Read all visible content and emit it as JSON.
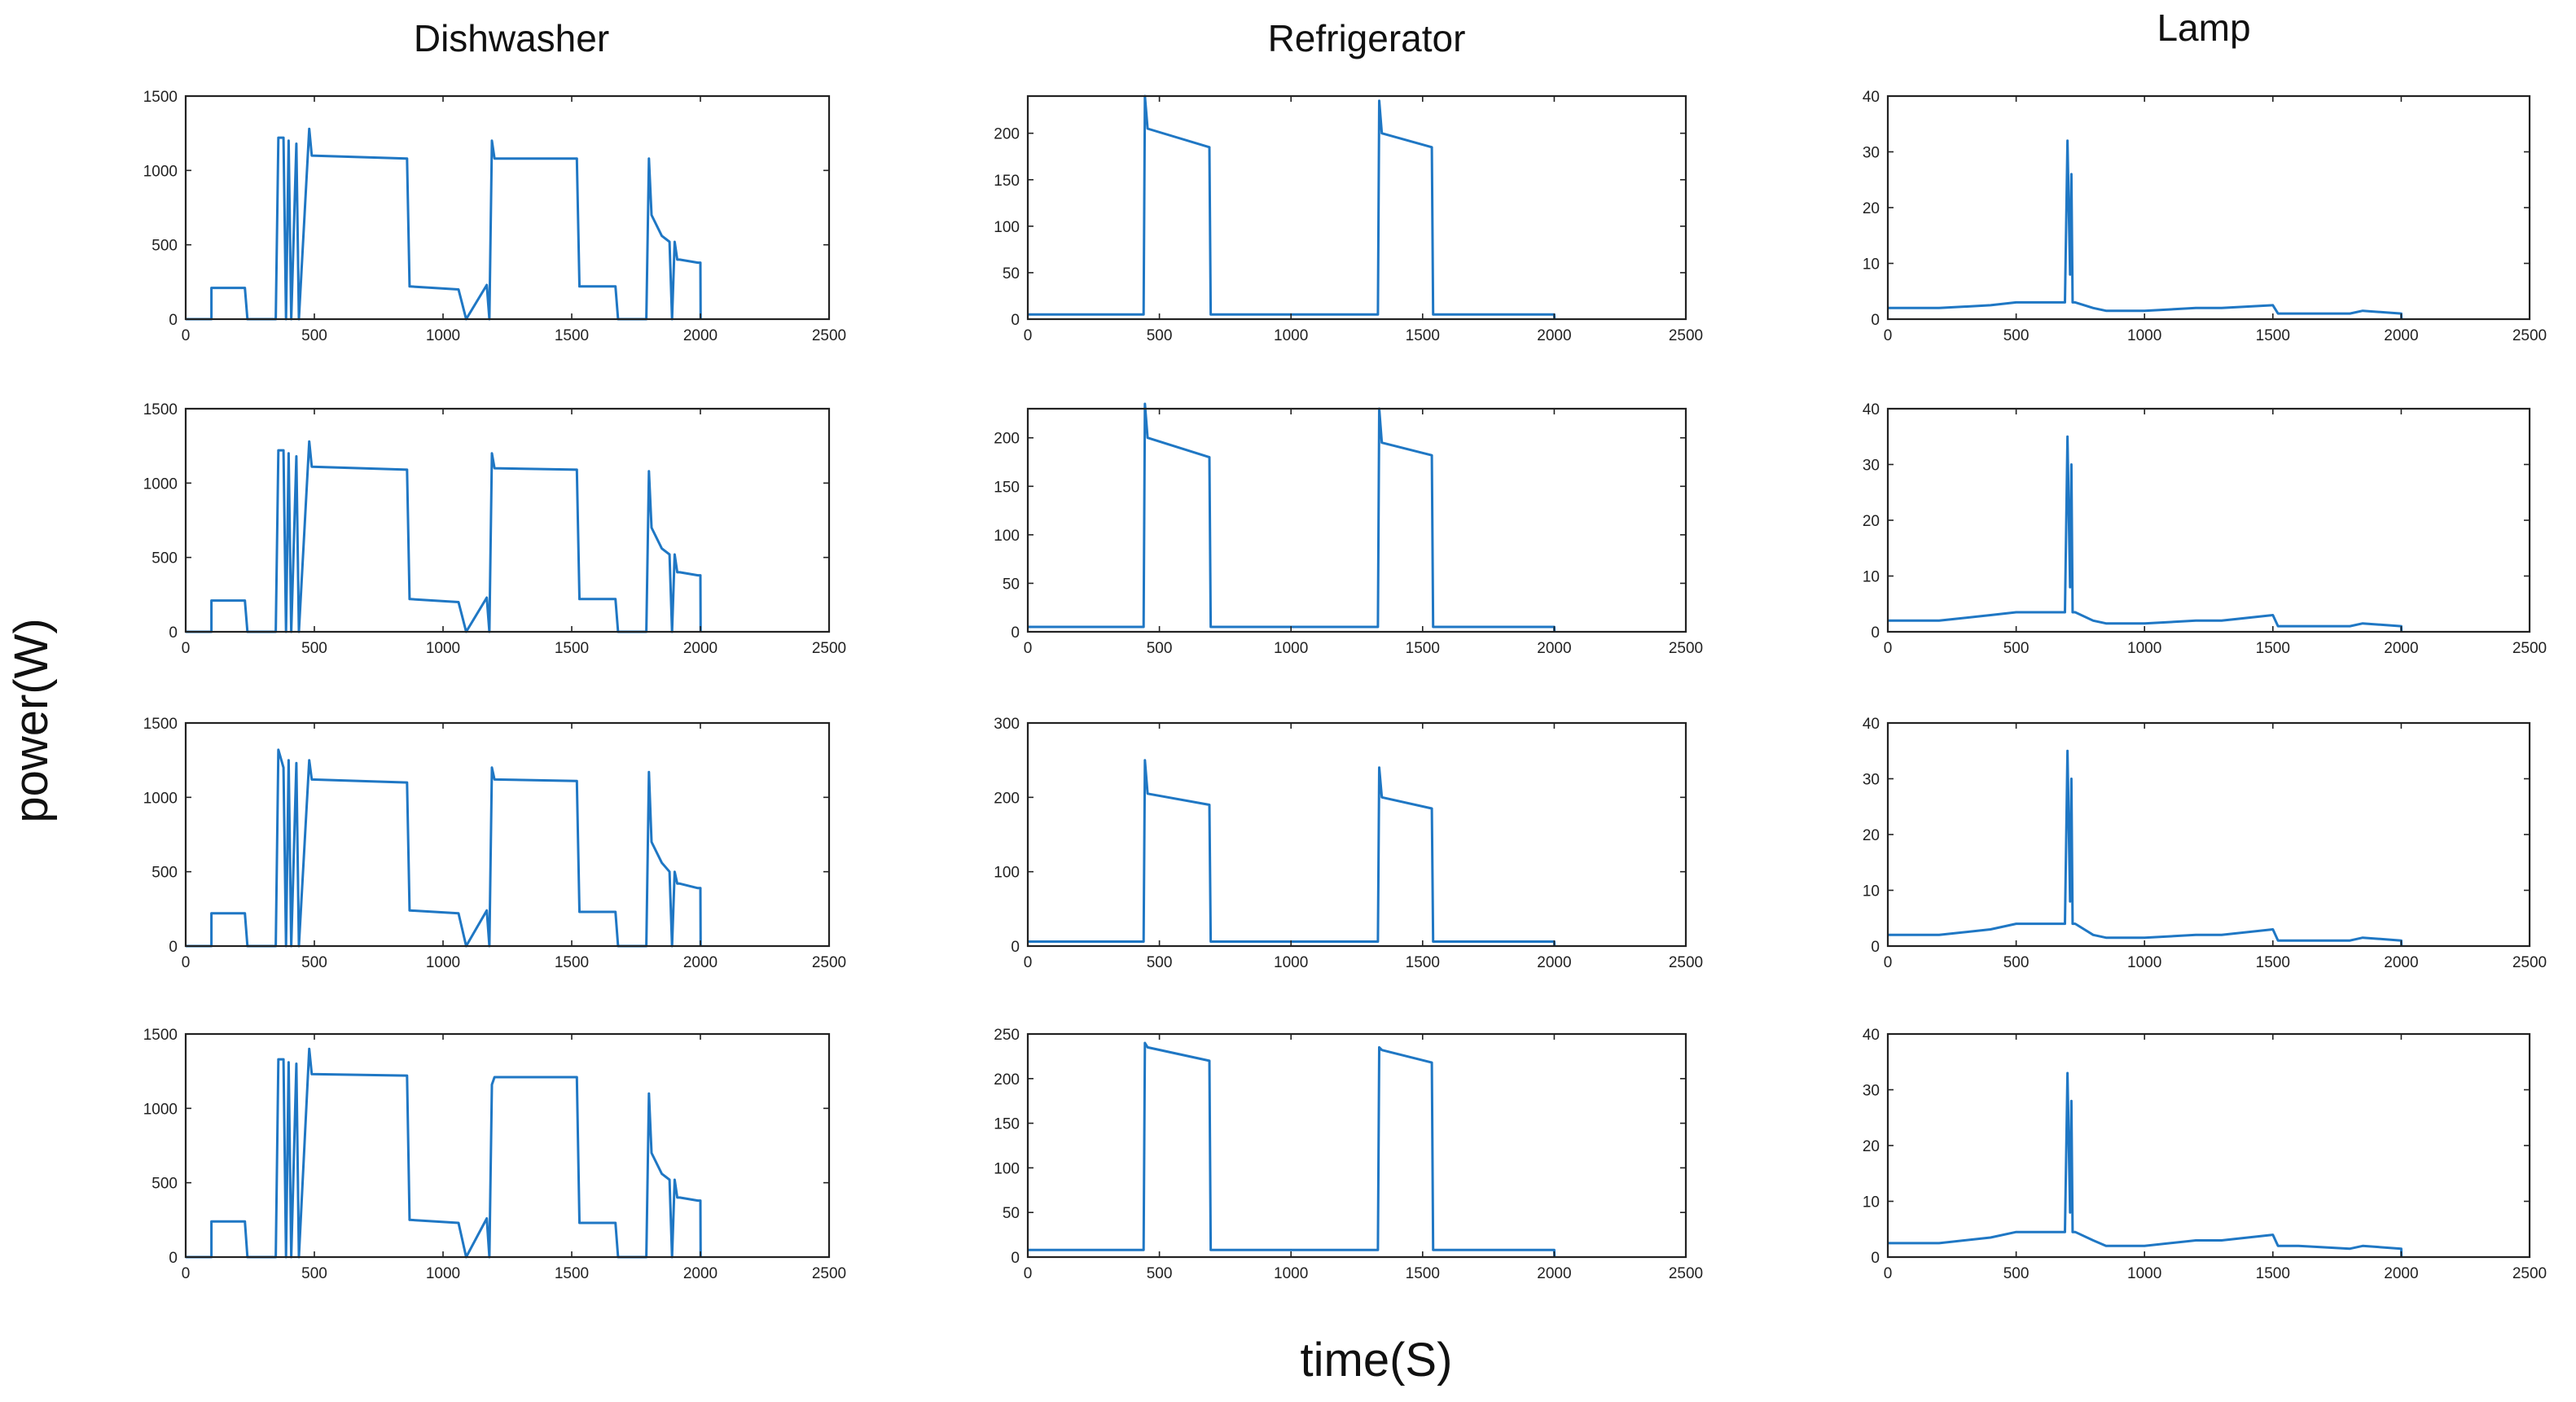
{
  "figure": {
    "ylabel": "power(W)",
    "xlabel": "time(S)",
    "columns": [
      "Dishwasher",
      "Refrigerator",
      "Lamp"
    ],
    "line_color": "#1f77c4"
  },
  "chart_data": [
    {
      "appliance": "Dishwasher",
      "row": 1,
      "type": "line",
      "xlim": [
        0,
        2500
      ],
      "ylim": [
        0,
        1500
      ],
      "xticks": [
        0,
        500,
        1000,
        1500,
        2000,
        2500
      ],
      "yticks": [
        0,
        500,
        1000,
        1500
      ],
      "series": [
        {
          "name": "Dishwasher 1",
          "x": [
            0,
            100,
            100,
            230,
            240,
            350,
            360,
            380,
            390,
            400,
            410,
            430,
            440,
            480,
            490,
            860,
            870,
            1060,
            1090,
            1170,
            1180,
            1190,
            1200,
            1520,
            1530,
            1670,
            1680,
            1790,
            1800,
            1810,
            1850,
            1880,
            1890,
            1900,
            1910,
            1920,
            1990,
            2000,
            2001
          ],
          "y": [
            0,
            0,
            210,
            210,
            0,
            0,
            1220,
            1220,
            0,
            1200,
            0,
            1180,
            0,
            1280,
            1100,
            1080,
            220,
            200,
            0,
            230,
            0,
            1200,
            1080,
            1080,
            220,
            220,
            0,
            0,
            1080,
            700,
            560,
            520,
            0,
            520,
            400,
            400,
            380,
            380,
            0
          ]
        }
      ]
    },
    {
      "appliance": "Refrigerator",
      "row": 1,
      "type": "line",
      "xlim": [
        0,
        2500
      ],
      "ylim": [
        0,
        240
      ],
      "xticks": [
        0,
        500,
        1000,
        1500,
        2000,
        2500
      ],
      "yticks": [
        0,
        50,
        100,
        150,
        200
      ],
      "series": [
        {
          "name": "Refrigerator 1",
          "x": [
            0,
            440,
            445,
            455,
            690,
            695,
            1330,
            1335,
            1345,
            1535,
            1540,
            2000,
            2001
          ],
          "y": [
            5,
            5,
            240,
            205,
            185,
            5,
            5,
            235,
            200,
            185,
            5,
            5,
            0
          ]
        }
      ]
    },
    {
      "appliance": "Lamp",
      "row": 1,
      "type": "line",
      "xlim": [
        0,
        2500
      ],
      "ylim": [
        0,
        40
      ],
      "xticks": [
        0,
        500,
        1000,
        1500,
        2000,
        2500
      ],
      "yticks": [
        0,
        10,
        20,
        30,
        40
      ],
      "series": [
        {
          "name": "Lamp 1",
          "x": [
            0,
            200,
            400,
            500,
            690,
            700,
            710,
            715,
            720,
            730,
            800,
            850,
            1000,
            1200,
            1300,
            1500,
            1520,
            1600,
            1800,
            1850,
            2000,
            2001
          ],
          "y": [
            2,
            2,
            2.5,
            3,
            3,
            32,
            8,
            26,
            3,
            3,
            2,
            1.5,
            1.5,
            2,
            2,
            2.5,
            1,
            1,
            1,
            1.5,
            1,
            0
          ]
        }
      ]
    },
    {
      "appliance": "Dishwasher",
      "row": 2,
      "type": "line",
      "xlim": [
        0,
        2500
      ],
      "ylim": [
        0,
        1500
      ],
      "xticks": [
        0,
        500,
        1000,
        1500,
        2000,
        2500
      ],
      "yticks": [
        0,
        500,
        1000,
        1500
      ],
      "series": [
        {
          "name": "Dishwasher 2",
          "x": [
            0,
            100,
            100,
            230,
            240,
            350,
            360,
            380,
            390,
            400,
            410,
            430,
            440,
            480,
            490,
            860,
            870,
            1060,
            1090,
            1170,
            1180,
            1190,
            1200,
            1520,
            1530,
            1670,
            1680,
            1790,
            1800,
            1810,
            1850,
            1880,
            1890,
            1900,
            1910,
            1920,
            1990,
            2000,
            2001
          ],
          "y": [
            0,
            0,
            210,
            210,
            0,
            0,
            1220,
            1220,
            0,
            1200,
            0,
            1180,
            0,
            1280,
            1110,
            1090,
            220,
            200,
            0,
            230,
            0,
            1200,
            1100,
            1090,
            220,
            220,
            0,
            0,
            1080,
            700,
            560,
            520,
            0,
            520,
            400,
            400,
            380,
            380,
            0
          ]
        }
      ]
    },
    {
      "appliance": "Refrigerator",
      "row": 2,
      "type": "line",
      "xlim": [
        0,
        2500
      ],
      "ylim": [
        0,
        230
      ],
      "xticks": [
        0,
        500,
        1000,
        1500,
        2000,
        2500
      ],
      "yticks": [
        0,
        50,
        100,
        150,
        200
      ],
      "series": [
        {
          "name": "Refrigerator 2",
          "x": [
            0,
            440,
            445,
            455,
            690,
            695,
            1330,
            1335,
            1345,
            1535,
            1540,
            2000,
            2001
          ],
          "y": [
            5,
            5,
            235,
            200,
            180,
            5,
            5,
            230,
            195,
            182,
            5,
            5,
            0
          ]
        }
      ]
    },
    {
      "appliance": "Lamp",
      "row": 2,
      "type": "line",
      "xlim": [
        0,
        2500
      ],
      "ylim": [
        0,
        40
      ],
      "xticks": [
        0,
        500,
        1000,
        1500,
        2000,
        2500
      ],
      "yticks": [
        0,
        10,
        20,
        30,
        40
      ],
      "series": [
        {
          "name": "Lamp 2",
          "x": [
            0,
            200,
            400,
            500,
            690,
            700,
            710,
            715,
            720,
            730,
            800,
            850,
            1000,
            1200,
            1300,
            1500,
            1520,
            1600,
            1800,
            1850,
            2000,
            2001
          ],
          "y": [
            2,
            2,
            3,
            3.5,
            3.5,
            35,
            8,
            30,
            3.5,
            3.5,
            2,
            1.5,
            1.5,
            2,
            2,
            3,
            1,
            1,
            1,
            1.5,
            1,
            0
          ]
        }
      ]
    },
    {
      "appliance": "Dishwasher",
      "row": 3,
      "type": "line",
      "xlim": [
        0,
        2500
      ],
      "ylim": [
        0,
        1500
      ],
      "xticks": [
        0,
        500,
        1000,
        1500,
        2000,
        2500
      ],
      "yticks": [
        0,
        500,
        1000,
        1500
      ],
      "series": [
        {
          "name": "Dishwasher 3",
          "x": [
            0,
            100,
            100,
            230,
            240,
            350,
            360,
            380,
            390,
            400,
            410,
            430,
            440,
            480,
            490,
            860,
            870,
            1060,
            1090,
            1170,
            1180,
            1190,
            1200,
            1520,
            1530,
            1670,
            1680,
            1790,
            1800,
            1810,
            1850,
            1880,
            1890,
            1900,
            1910,
            1920,
            1990,
            2000,
            2001
          ],
          "y": [
            0,
            0,
            220,
            220,
            0,
            0,
            1320,
            1200,
            0,
            1250,
            0,
            1230,
            0,
            1250,
            1120,
            1100,
            240,
            220,
            0,
            240,
            0,
            1200,
            1120,
            1110,
            230,
            230,
            0,
            0,
            1170,
            700,
            560,
            500,
            0,
            500,
            420,
            420,
            390,
            390,
            0
          ]
        }
      ]
    },
    {
      "appliance": "Refrigerator",
      "row": 3,
      "type": "line",
      "xlim": [
        0,
        2500
      ],
      "ylim": [
        0,
        300
      ],
      "xticks": [
        0,
        500,
        1000,
        1500,
        2000,
        2500
      ],
      "yticks": [
        0,
        100,
        200,
        300
      ],
      "series": [
        {
          "name": "Refrigerator 3",
          "x": [
            0,
            440,
            445,
            455,
            690,
            695,
            1330,
            1335,
            1345,
            1535,
            1540,
            2000,
            2001
          ],
          "y": [
            6,
            6,
            250,
            205,
            190,
            6,
            6,
            240,
            200,
            185,
            6,
            6,
            0
          ]
        }
      ]
    },
    {
      "appliance": "Lamp",
      "row": 3,
      "type": "line",
      "xlim": [
        0,
        2500
      ],
      "ylim": [
        0,
        40
      ],
      "xticks": [
        0,
        500,
        1000,
        1500,
        2000,
        2500
      ],
      "yticks": [
        0,
        10,
        20,
        30,
        40
      ],
      "series": [
        {
          "name": "Lamp 3",
          "x": [
            0,
            200,
            400,
            500,
            690,
            700,
            710,
            715,
            720,
            730,
            800,
            850,
            1000,
            1200,
            1300,
            1500,
            1520,
            1600,
            1800,
            1850,
            2000,
            2001
          ],
          "y": [
            2,
            2,
            3,
            4,
            4,
            35,
            8,
            30,
            4,
            4,
            2,
            1.5,
            1.5,
            2,
            2,
            3,
            1,
            1,
            1,
            1.5,
            1,
            0
          ]
        }
      ]
    },
    {
      "appliance": "Dishwasher",
      "row": 4,
      "type": "line",
      "xlim": [
        0,
        2500
      ],
      "ylim": [
        0,
        1500
      ],
      "xticks": [
        0,
        500,
        1000,
        1500,
        2000,
        2500
      ],
      "yticks": [
        0,
        500,
        1000,
        1500
      ],
      "series": [
        {
          "name": "Dishwasher 4",
          "x": [
            0,
            100,
            100,
            230,
            240,
            350,
            360,
            380,
            390,
            400,
            410,
            430,
            440,
            480,
            490,
            860,
            870,
            1060,
            1090,
            1170,
            1180,
            1190,
            1200,
            1520,
            1530,
            1670,
            1680,
            1790,
            1800,
            1810,
            1850,
            1880,
            1890,
            1900,
            1910,
            1920,
            1990,
            2000,
            2001
          ],
          "y": [
            0,
            0,
            240,
            240,
            0,
            0,
            1330,
            1330,
            0,
            1310,
            0,
            1300,
            0,
            1400,
            1230,
            1220,
            250,
            230,
            0,
            260,
            0,
            1160,
            1210,
            1210,
            230,
            230,
            0,
            0,
            1100,
            700,
            560,
            520,
            0,
            520,
            400,
            400,
            380,
            380,
            0
          ]
        }
      ]
    },
    {
      "appliance": "Refrigerator",
      "row": 4,
      "type": "line",
      "xlim": [
        0,
        2500
      ],
      "ylim": [
        0,
        250
      ],
      "xticks": [
        0,
        500,
        1000,
        1500,
        2000,
        2500
      ],
      "yticks": [
        0,
        50,
        100,
        150,
        200,
        250
      ],
      "series": [
        {
          "name": "Refrigerator 4",
          "x": [
            0,
            440,
            445,
            455,
            690,
            695,
            1330,
            1335,
            1345,
            1535,
            1540,
            2000,
            2001
          ],
          "y": [
            8,
            8,
            240,
            235,
            220,
            8,
            8,
            235,
            232,
            218,
            8,
            8,
            0
          ]
        }
      ]
    },
    {
      "appliance": "Lamp",
      "row": 4,
      "type": "line",
      "xlim": [
        0,
        2500
      ],
      "ylim": [
        0,
        40
      ],
      "xticks": [
        0,
        500,
        1000,
        1500,
        2000,
        2500
      ],
      "yticks": [
        0,
        10,
        20,
        30,
        40
      ],
      "series": [
        {
          "name": "Lamp 4",
          "x": [
            0,
            200,
            400,
            500,
            690,
            700,
            710,
            715,
            720,
            730,
            800,
            850,
            1000,
            1200,
            1300,
            1500,
            1520,
            1600,
            1800,
            1850,
            2000,
            2001
          ],
          "y": [
            2.5,
            2.5,
            3.5,
            4.5,
            4.5,
            33,
            8,
            28,
            4.5,
            4.5,
            3,
            2,
            2,
            3,
            3,
            4,
            2,
            2,
            1.5,
            2,
            1.5,
            0
          ]
        }
      ]
    }
  ]
}
